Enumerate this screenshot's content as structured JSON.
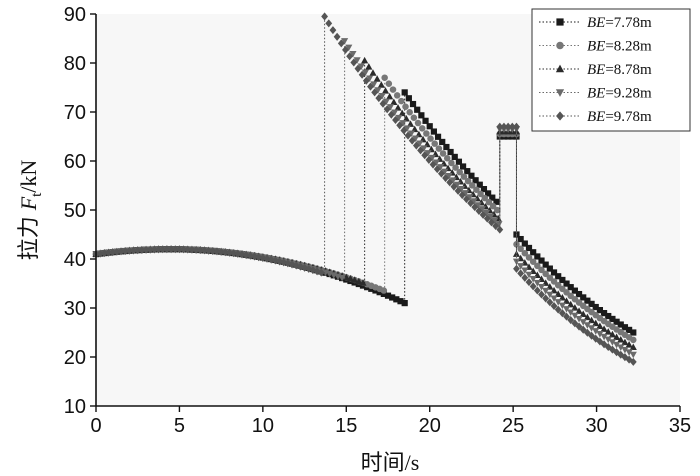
{
  "chart_data": {
    "type": "scatter",
    "xlabel": "时间/s",
    "ylabel": {
      "prefix": "拉力",
      "symbol": "F",
      "subscript": "t",
      "unit": "/kN"
    },
    "xlim": [
      0,
      35
    ],
    "ylim": [
      10,
      90
    ],
    "xticks": [
      0,
      5,
      10,
      15,
      20,
      25,
      30,
      35
    ],
    "yticks": [
      10,
      20,
      30,
      40,
      50,
      60,
      70,
      80,
      90
    ],
    "legend_position": "top-right",
    "grid": false,
    "series": [
      {
        "name": "BE=7.78m",
        "label_italic": "BE",
        "label_rest": "=7.78m",
        "marker": "square",
        "color": "#1a1a1a",
        "jump_t": 18.5,
        "low_before_jump": 31.0,
        "peak_after_jump": 74.0,
        "value_at_24": 51.0,
        "plateau": 65.0,
        "plateau_range": [
          24.2,
          25.2
        ],
        "drop_value": 45.0,
        "end_value": 25.0
      },
      {
        "name": "BE=8.28m",
        "label_italic": "BE",
        "label_rest": "=8.28m",
        "marker": "circle",
        "color": "#777777",
        "jump_t": 17.3,
        "low_before_jump": 33.5,
        "peak_after_jump": 77.0,
        "value_at_24": 49.5,
        "plateau": 65.5,
        "plateau_range": [
          24.2,
          25.2
        ],
        "drop_value": 43.0,
        "end_value": 23.5
      },
      {
        "name": "BE=8.78m",
        "label_italic": "BE",
        "label_rest": "=8.78m",
        "marker": "triangle",
        "color": "#2b2b2b",
        "jump_t": 16.1,
        "low_before_jump": 35.0,
        "peak_after_jump": 80.5,
        "value_at_24": 48.0,
        "plateau": 66.0,
        "plateau_range": [
          24.2,
          25.2
        ],
        "drop_value": 41.0,
        "end_value": 22.0
      },
      {
        "name": "BE=9.28m",
        "label_italic": "BE",
        "label_rest": "=9.28m",
        "marker": "triangle-down",
        "color": "#6a6a6a",
        "jump_t": 14.9,
        "low_before_jump": 36.0,
        "peak_after_jump": 84.5,
        "value_at_24": 47.0,
        "plateau": 66.5,
        "plateau_range": [
          24.2,
          25.2
        ],
        "drop_value": 39.5,
        "end_value": 20.5
      },
      {
        "name": "BE=9.78m",
        "label_italic": "BE",
        "label_rest": "=9.78m",
        "marker": "diamond",
        "color": "#555555",
        "jump_t": 13.7,
        "low_before_jump": 37.0,
        "peak_after_jump": 89.5,
        "value_at_24": 46.0,
        "plateau": 67.0,
        "plateau_range": [
          24.2,
          25.2
        ],
        "drop_value": 38.0,
        "end_value": 19.0
      }
    ],
    "common_initial_curve": {
      "start": 41.0,
      "max": 42.0,
      "max_at": 4.5,
      "end_t": 32.2
    }
  }
}
